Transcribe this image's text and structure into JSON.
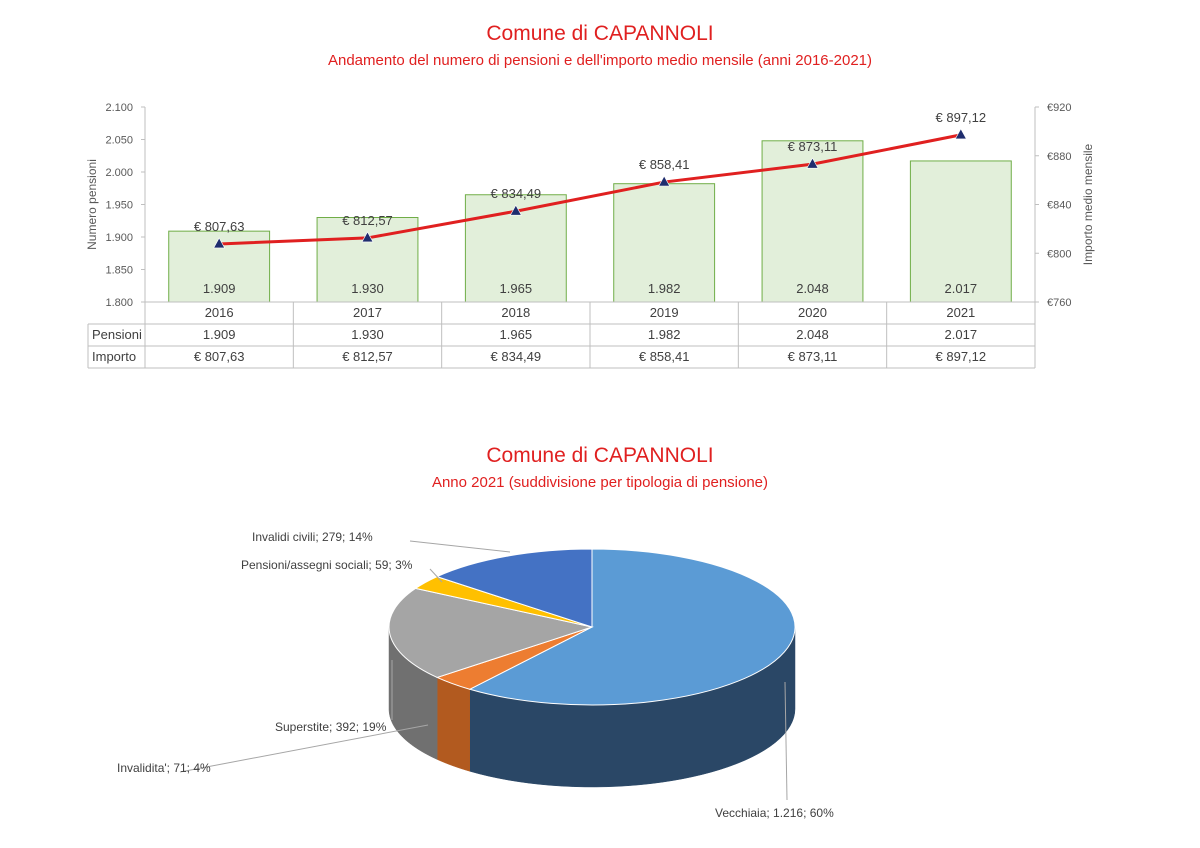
{
  "chart1": {
    "title": "Comune di CAPANNOLI",
    "subtitle": "Andamento del numero di pensioni e dell'importo medio mensile (anni 2016-2021)",
    "y_left_label": "Numero pensioni",
    "y_right_label": "Importo medio mensile",
    "y_left_ticks": [
      "2.100",
      "2.050",
      "2.000",
      "1.950",
      "1.900",
      "1.850",
      "1.800"
    ],
    "y_right_ticks": [
      "€920",
      "€880",
      "€840",
      "€800",
      "€760"
    ],
    "table_row_labels": [
      "Pensioni",
      "Importo"
    ]
  },
  "chart2": {
    "title": "Comune di CAPANNOLI",
    "subtitle": "Anno 2021 (suddivisione per tipologia di pensione)"
  },
  "chart_data": [
    {
      "type": "bar",
      "categories": [
        "2016",
        "2017",
        "2018",
        "2019",
        "2020",
        "2021"
      ],
      "series": [
        {
          "name": "Pensioni",
          "type": "bar",
          "axis": "left",
          "values": [
            1909,
            1930,
            1965,
            1982,
            2048,
            2017
          ],
          "labels": [
            "1.909",
            "1.930",
            "1.965",
            "1.982",
            "2.048",
            "2.017"
          ],
          "color": "#e2efda",
          "stroke": "#70ad47"
        },
        {
          "name": "Importo",
          "type": "line",
          "axis": "right",
          "values": [
            807.63,
            812.57,
            834.49,
            858.41,
            873.11,
            897.12
          ],
          "labels": [
            "€ 807,63",
            "€ 812,57",
            "€ 834,49",
            "€ 858,41",
            "€ 873,11",
            "€ 897,12"
          ],
          "color": "#e02020",
          "marker_color": "#1f2d6e"
        }
      ],
      "ylim_left": [
        1800,
        2100
      ],
      "ylim_right": [
        760,
        920
      ],
      "data_table": true
    },
    {
      "type": "pie",
      "slices": [
        {
          "label": "Vecchiaia; 1.216; 60%",
          "value": 1216,
          "color": "#5b9bd5",
          "side": "#2a4766"
        },
        {
          "label": "Invalidita'; 71; 4%",
          "value": 71,
          "color": "#ed7d31",
          "side": "#b25a1f"
        },
        {
          "label": "Superstite; 392; 19%",
          "value": 392,
          "color": "#a5a5a5",
          "side": "#707070"
        },
        {
          "label": "Pensioni/assegni sociali; 59; 3%",
          "value": 59,
          "color": "#ffc000",
          "side": "#b38600"
        },
        {
          "label": "Invalidi civili; 279; 14%",
          "value": 279,
          "color": "#4472c4",
          "side": "#2d4c85"
        }
      ]
    }
  ]
}
